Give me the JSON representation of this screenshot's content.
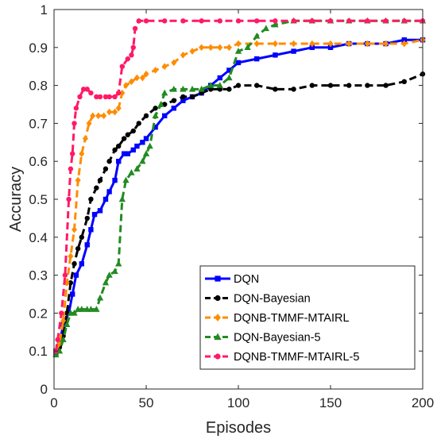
{
  "chart_data": {
    "type": "line",
    "title": "",
    "xlabel": "Episodes",
    "ylabel": "Accuracy",
    "xlim": [
      0,
      200
    ],
    "ylim": [
      0,
      1
    ],
    "xticks": [
      0,
      50,
      100,
      150,
      200
    ],
    "yticks": [
      0,
      0.1,
      0.2,
      0.3,
      0.4,
      0.5,
      0.6,
      0.7,
      0.8,
      0.9,
      1
    ],
    "grid": false,
    "legend_position": "bottom-right",
    "series": [
      {
        "name": "DQN",
        "color": "#0000ff",
        "marker": "square",
        "line": "solid",
        "points": [
          [
            1,
            0.1
          ],
          [
            3,
            0.12
          ],
          [
            5,
            0.17
          ],
          [
            8,
            0.2
          ],
          [
            10,
            0.25
          ],
          [
            12,
            0.3
          ],
          [
            15,
            0.33
          ],
          [
            18,
            0.38
          ],
          [
            20,
            0.42
          ],
          [
            22,
            0.46
          ],
          [
            25,
            0.47
          ],
          [
            28,
            0.5
          ],
          [
            30,
            0.52
          ],
          [
            33,
            0.55
          ],
          [
            35,
            0.6
          ],
          [
            38,
            0.62
          ],
          [
            40,
            0.62
          ],
          [
            43,
            0.63
          ],
          [
            45,
            0.64
          ],
          [
            48,
            0.65
          ],
          [
            50,
            0.66
          ],
          [
            55,
            0.69
          ],
          [
            60,
            0.72
          ],
          [
            65,
            0.74
          ],
          [
            70,
            0.76
          ],
          [
            75,
            0.77
          ],
          [
            80,
            0.78
          ],
          [
            85,
            0.8
          ],
          [
            90,
            0.82
          ],
          [
            95,
            0.84
          ],
          [
            100,
            0.86
          ],
          [
            110,
            0.87
          ],
          [
            120,
            0.88
          ],
          [
            130,
            0.89
          ],
          [
            140,
            0.9
          ],
          [
            150,
            0.9
          ],
          [
            160,
            0.91
          ],
          [
            170,
            0.91
          ],
          [
            180,
            0.91
          ],
          [
            190,
            0.92
          ],
          [
            200,
            0.92
          ]
        ]
      },
      {
        "name": "DQN-Bayesian",
        "color": "#000000",
        "marker": "circle",
        "line": "dashed",
        "points": [
          [
            1,
            0.09
          ],
          [
            3,
            0.11
          ],
          [
            5,
            0.14
          ],
          [
            7,
            0.2
          ],
          [
            9,
            0.28
          ],
          [
            11,
            0.33
          ],
          [
            13,
            0.37
          ],
          [
            15,
            0.4
          ],
          [
            18,
            0.45
          ],
          [
            20,
            0.5
          ],
          [
            23,
            0.53
          ],
          [
            25,
            0.55
          ],
          [
            28,
            0.58
          ],
          [
            30,
            0.6
          ],
          [
            33,
            0.63
          ],
          [
            35,
            0.64
          ],
          [
            38,
            0.66
          ],
          [
            40,
            0.67
          ],
          [
            43,
            0.68
          ],
          [
            46,
            0.7
          ],
          [
            50,
            0.72
          ],
          [
            55,
            0.74
          ],
          [
            60,
            0.75
          ],
          [
            65,
            0.76
          ],
          [
            70,
            0.77
          ],
          [
            75,
            0.77
          ],
          [
            80,
            0.78
          ],
          [
            85,
            0.79
          ],
          [
            90,
            0.79
          ],
          [
            95,
            0.79
          ],
          [
            100,
            0.8
          ],
          [
            110,
            0.8
          ],
          [
            120,
            0.79
          ],
          [
            130,
            0.79
          ],
          [
            140,
            0.8
          ],
          [
            150,
            0.8
          ],
          [
            160,
            0.8
          ],
          [
            170,
            0.8
          ],
          [
            180,
            0.8
          ],
          [
            190,
            0.81
          ],
          [
            200,
            0.83
          ]
        ]
      },
      {
        "name": "DQNB-TMMF-MTAIRL",
        "color": "#ff8c00",
        "marker": "diamond",
        "line": "dashed",
        "points": [
          [
            1,
            0.1
          ],
          [
            3,
            0.12
          ],
          [
            5,
            0.18
          ],
          [
            7,
            0.28
          ],
          [
            9,
            0.35
          ],
          [
            11,
            0.42
          ],
          [
            13,
            0.55
          ],
          [
            15,
            0.62
          ],
          [
            17,
            0.66
          ],
          [
            19,
            0.7
          ],
          [
            21,
            0.72
          ],
          [
            24,
            0.72
          ],
          [
            27,
            0.72
          ],
          [
            30,
            0.73
          ],
          [
            33,
            0.73
          ],
          [
            35,
            0.74
          ],
          [
            37,
            0.78
          ],
          [
            39,
            0.8
          ],
          [
            42,
            0.81
          ],
          [
            45,
            0.82
          ],
          [
            48,
            0.82
          ],
          [
            50,
            0.83
          ],
          [
            55,
            0.84
          ],
          [
            60,
            0.85
          ],
          [
            65,
            0.86
          ],
          [
            70,
            0.88
          ],
          [
            75,
            0.89
          ],
          [
            80,
            0.9
          ],
          [
            85,
            0.9
          ],
          [
            90,
            0.9
          ],
          [
            95,
            0.9
          ],
          [
            100,
            0.91
          ],
          [
            110,
            0.91
          ],
          [
            120,
            0.91
          ],
          [
            130,
            0.91
          ],
          [
            140,
            0.91
          ],
          [
            150,
            0.91
          ],
          [
            160,
            0.91
          ],
          [
            170,
            0.91
          ],
          [
            180,
            0.91
          ],
          [
            190,
            0.91
          ],
          [
            200,
            0.92
          ]
        ]
      },
      {
        "name": "DQN-Bayesian-5",
        "color": "#228b22",
        "marker": "triangle",
        "line": "dashed",
        "points": [
          [
            1,
            0.09
          ],
          [
            3,
            0.1
          ],
          [
            5,
            0.13
          ],
          [
            7,
            0.17
          ],
          [
            9,
            0.2
          ],
          [
            11,
            0.2
          ],
          [
            13,
            0.21
          ],
          [
            15,
            0.21
          ],
          [
            18,
            0.21
          ],
          [
            20,
            0.21
          ],
          [
            23,
            0.21
          ],
          [
            25,
            0.24
          ],
          [
            28,
            0.28
          ],
          [
            30,
            0.3
          ],
          [
            33,
            0.31
          ],
          [
            35,
            0.33
          ],
          [
            37,
            0.5
          ],
          [
            39,
            0.55
          ],
          [
            42,
            0.57
          ],
          [
            45,
            0.58
          ],
          [
            48,
            0.6
          ],
          [
            50,
            0.62
          ],
          [
            52,
            0.64
          ],
          [
            55,
            0.72
          ],
          [
            58,
            0.75
          ],
          [
            60,
            0.78
          ],
          [
            65,
            0.79
          ],
          [
            70,
            0.79
          ],
          [
            75,
            0.79
          ],
          [
            80,
            0.79
          ],
          [
            85,
            0.8
          ],
          [
            90,
            0.8
          ],
          [
            95,
            0.82
          ],
          [
            100,
            0.89
          ],
          [
            105,
            0.9
          ],
          [
            110,
            0.93
          ],
          [
            115,
            0.95
          ],
          [
            120,
            0.96
          ],
          [
            130,
            0.97
          ],
          [
            140,
            0.97
          ],
          [
            150,
            0.97
          ],
          [
            160,
            0.97
          ],
          [
            170,
            0.97
          ],
          [
            180,
            0.97
          ],
          [
            190,
            0.97
          ],
          [
            200,
            0.97
          ]
        ]
      },
      {
        "name": "DQNB-TMMF-MTAIRL-5",
        "color": "#ff1a66",
        "marker": "circle",
        "line": "dashed",
        "points": [
          [
            1,
            0.1
          ],
          [
            2,
            0.13
          ],
          [
            4,
            0.2
          ],
          [
            6,
            0.3
          ],
          [
            8,
            0.5
          ],
          [
            9,
            0.58
          ],
          [
            10,
            0.62
          ],
          [
            11,
            0.7
          ],
          [
            12,
            0.74
          ],
          [
            14,
            0.77
          ],
          [
            16,
            0.79
          ],
          [
            18,
            0.79
          ],
          [
            20,
            0.78
          ],
          [
            23,
            0.77
          ],
          [
            25,
            0.77
          ],
          [
            28,
            0.77
          ],
          [
            30,
            0.77
          ],
          [
            33,
            0.77
          ],
          [
            35,
            0.78
          ],
          [
            37,
            0.85
          ],
          [
            40,
            0.87
          ],
          [
            42,
            0.88
          ],
          [
            43,
            0.9
          ],
          [
            44,
            0.95
          ],
          [
            46,
            0.97
          ],
          [
            50,
            0.97
          ],
          [
            60,
            0.97
          ],
          [
            70,
            0.97
          ],
          [
            80,
            0.97
          ],
          [
            90,
            0.97
          ],
          [
            100,
            0.97
          ],
          [
            110,
            0.97
          ],
          [
            120,
            0.97
          ],
          [
            130,
            0.97
          ],
          [
            140,
            0.97
          ],
          [
            150,
            0.97
          ],
          [
            160,
            0.97
          ],
          [
            170,
            0.97
          ],
          [
            180,
            0.97
          ],
          [
            190,
            0.97
          ],
          [
            200,
            0.97
          ]
        ]
      }
    ]
  }
}
